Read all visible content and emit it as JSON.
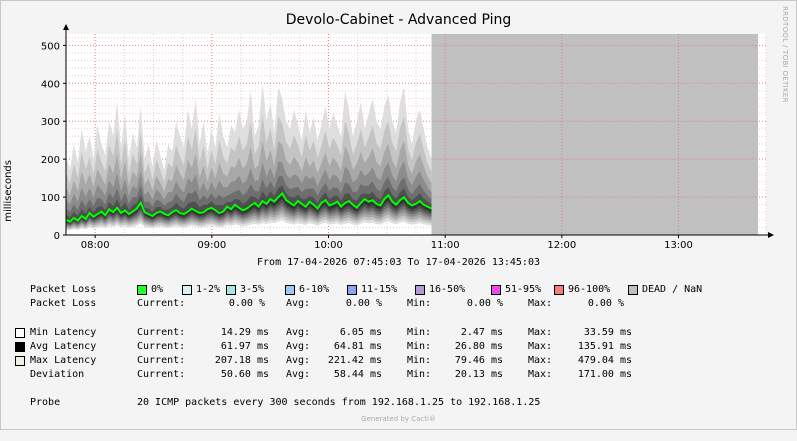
{
  "chart_data": {
    "type": "area",
    "title": "Devolo-Cabinet - Advanced Ping",
    "ylabel": "milliseconds",
    "ylim": [
      0,
      530
    ],
    "yticks": [
      0,
      100,
      200,
      300,
      400,
      500
    ],
    "xticks": [
      "08:00",
      "09:00",
      "10:00",
      "11:00",
      "12:00",
      "13:00"
    ],
    "x_range": [
      "07:45",
      "13:45"
    ],
    "data_end": "10:53",
    "grid": true,
    "series": [
      {
        "name": "Avg Latency",
        "color": "#00ff00",
        "x_start": "07:45",
        "x_step_minutes": 2,
        "values": [
          40,
          35,
          45,
          38,
          50,
          42,
          58,
          48,
          55,
          62,
          52,
          68,
          60,
          72,
          58,
          65,
          55,
          62,
          70,
          85,
          60,
          55,
          50,
          58,
          62,
          56,
          52,
          60,
          66,
          58,
          55,
          62,
          70,
          64,
          58,
          60,
          68,
          72,
          65,
          58,
          62,
          75,
          68,
          80,
          72,
          65,
          70,
          78,
          85,
          75,
          90,
          82,
          95,
          88,
          100,
          110,
          92,
          85,
          78,
          90,
          82,
          75,
          88,
          80,
          70,
          85,
          92,
          78,
          82,
          88,
          75,
          85,
          90,
          80,
          72,
          85,
          95,
          88,
          92,
          82,
          78,
          95,
          105,
          88,
          80,
          92,
          100,
          85,
          78,
          82,
          90,
          80,
          75,
          70
        ]
      },
      {
        "name": "Max Latency",
        "color": "#bdbdbd",
        "x_start": "07:45",
        "x_step_minutes": 2,
        "values": [
          210,
          170,
          240,
          190,
          280,
          220,
          260,
          200,
          290,
          240,
          210,
          300,
          260,
          350,
          230,
          320,
          200,
          270,
          230,
          340,
          200,
          240,
          180,
          250,
          210,
          170,
          240,
          220,
          300,
          260,
          230,
          330,
          280,
          360,
          240,
          300,
          210,
          280,
          230,
          320,
          260,
          230,
          290,
          270,
          330,
          280,
          300,
          380,
          260,
          290,
          400,
          300,
          350,
          270,
          390,
          360,
          300,
          280,
          330,
          290,
          250,
          330,
          270,
          310,
          250,
          290,
          340,
          280,
          320,
          290,
          260,
          380,
          330,
          260,
          300,
          350,
          280,
          320,
          360,
          300,
          280,
          340,
          370,
          300,
          270,
          350,
          390,
          280,
          240,
          300,
          330,
          280,
          230,
          200
        ]
      }
    ],
    "dead_region": {
      "from": "10:53",
      "to": "13:45",
      "color": "#c0c0c0"
    }
  },
  "vertical_credit": "RRDTOOL / TOBI OETIKER",
  "time_range": "From 17-04-2026 07:45:03 To 17-04-2026 13:45:03",
  "packet_loss": {
    "label": "Packet Loss",
    "buckets": [
      {
        "label": "0%",
        "color": "#26ff26"
      },
      {
        "label": "1-2%",
        "color": "#d9f0f5"
      },
      {
        "label": "3-5%",
        "color": "#a6e6e6"
      },
      {
        "label": "6-10%",
        "color": "#9fc8f2"
      },
      {
        "label": "11-15%",
        "color": "#8aa5f0"
      },
      {
        "label": "16-50%",
        "color": "#b39bd6"
      },
      {
        "label": "51-95%",
        "color": "#f04af0"
      },
      {
        "label": "96-100%",
        "color": "#f08080"
      },
      {
        "label": "DEAD / NaN",
        "color": "#bfbfbf"
      }
    ],
    "stats": {
      "current": "0.00 %",
      "avg": "0.00 %",
      "min": "0.00 %",
      "max": "0.00 %"
    }
  },
  "stat_labels": {
    "current": "Current:",
    "avg": "Avg:",
    "min": "Min:",
    "max": "Max:"
  },
  "latency_rows": [
    {
      "label": "Min Latency",
      "swatch": "#ffffff",
      "current": "14.29 ms",
      "avg": "6.05 ms",
      "min": "2.47 ms",
      "max": "33.59 ms"
    },
    {
      "label": "Avg Latency",
      "swatch": "#000000",
      "current": "61.97 ms",
      "avg": "64.81 ms",
      "min": "26.80 ms",
      "max": "135.91 ms"
    },
    {
      "label": "Max Latency",
      "swatch": "#f0f0e8",
      "current": "207.18 ms",
      "avg": "221.42 ms",
      "min": "79.46 ms",
      "max": "479.04 ms"
    },
    {
      "label": "Deviation",
      "swatch": "",
      "current": "50.60 ms",
      "avg": "58.44 ms",
      "min": "20.13 ms",
      "max": "171.00 ms"
    }
  ],
  "probe": {
    "label": "Probe",
    "text": "20 ICMP packets every 300 seconds from 192.168.1.25 to 192.168.1.25"
  },
  "footer": "Generated by Cacti®"
}
